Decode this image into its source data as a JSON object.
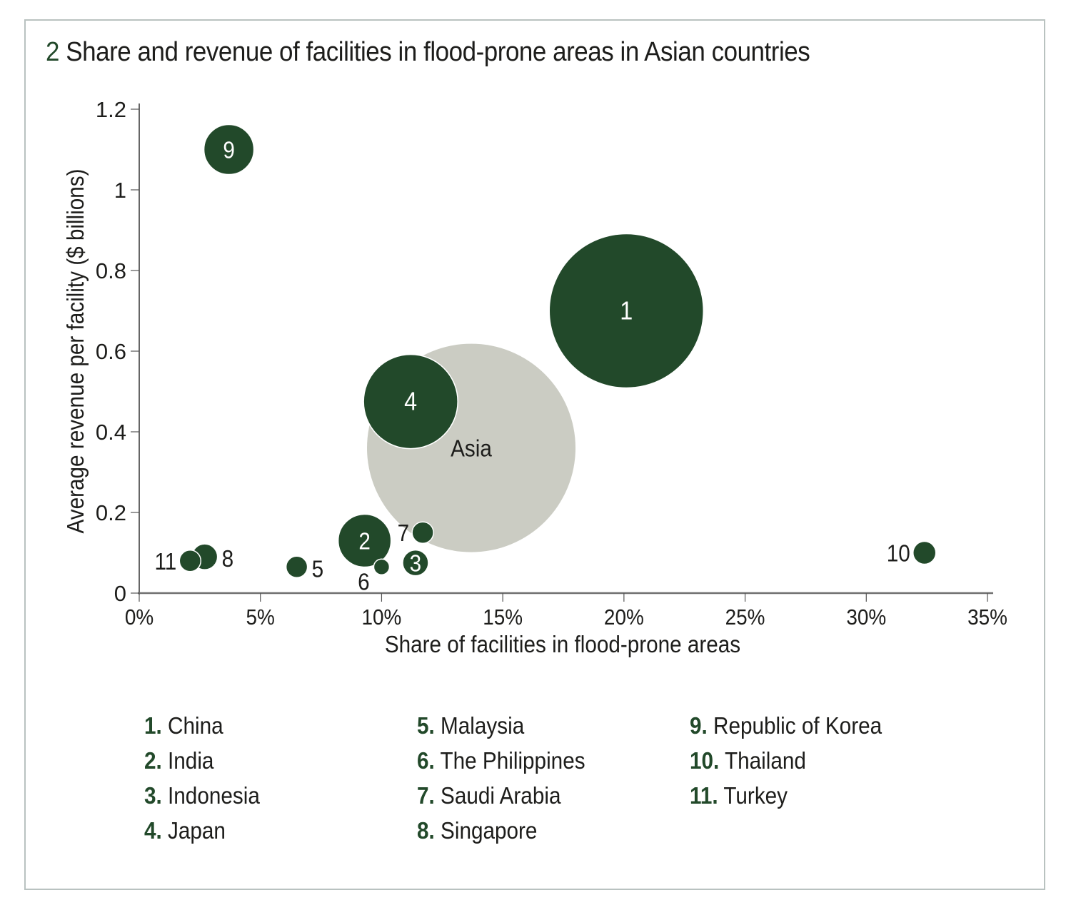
{
  "figure": {
    "number": "2",
    "title": "Share and revenue of facilities in flood-prone areas in Asian countries"
  },
  "colors": {
    "country_bubble": "#22492a",
    "asia_bubble": "#cbccc3",
    "axis": "#6f6f6f",
    "frame": "#b9c2c0"
  },
  "chart_data": {
    "type": "scatter",
    "subtype": "bubble",
    "title": "Share and revenue of facilities in flood-prone areas in Asian countries",
    "xlabel": "Share of facilities in flood-prone areas",
    "ylabel": "Average revenue per facility ($ billions)",
    "xlim": [
      0,
      35
    ],
    "ylim": [
      0,
      1.2
    ],
    "x_ticks": [
      "0%",
      "5%",
      "10%",
      "15%",
      "20%",
      "25%",
      "30%",
      "35%"
    ],
    "x_tick_values": [
      0,
      5,
      10,
      15,
      20,
      25,
      30,
      35
    ],
    "y_ticks": [
      "0",
      "0.2",
      "0.4",
      "0.6",
      "0.8",
      "1",
      "1.2"
    ],
    "y_tick_values": [
      0,
      0.2,
      0.4,
      0.6,
      0.8,
      1.0,
      1.2
    ],
    "grid": false,
    "size_note": "relative bubble size (arbitrary units, estimated)",
    "points": [
      {
        "id": "asia",
        "label": "Asia",
        "name": "Asia",
        "x": 13.7,
        "y": 0.36,
        "size": 146,
        "label_pos": "inside-offset",
        "kind": "aggregate"
      },
      {
        "id": "1",
        "label": "1",
        "name": "China",
        "x": 20.1,
        "y": 0.7,
        "size": 108,
        "label_pos": "center"
      },
      {
        "id": "4",
        "label": "4",
        "name": "Japan",
        "x": 11.2,
        "y": 0.475,
        "size": 66,
        "label_pos": "center"
      },
      {
        "id": "9",
        "label": "9",
        "name": "Republic of Korea",
        "x": 3.7,
        "y": 1.1,
        "size": 35,
        "label_pos": "center"
      },
      {
        "id": "2",
        "label": "2",
        "name": "India",
        "x": 9.3,
        "y": 0.13,
        "size": 37,
        "label_pos": "center"
      },
      {
        "id": "7",
        "label": "7",
        "name": "Saudi Arabia",
        "x": 11.7,
        "y": 0.15,
        "size": 15,
        "label_pos": "left"
      },
      {
        "id": "3",
        "label": "3",
        "name": "Indonesia",
        "x": 11.4,
        "y": 0.075,
        "size": 18,
        "label_pos": "center"
      },
      {
        "id": "6",
        "label": "6",
        "name": "The Philippines",
        "x": 10.0,
        "y": 0.065,
        "size": 11,
        "label_pos": "below-left"
      },
      {
        "id": "5",
        "label": "5",
        "name": "Malaysia",
        "x": 6.5,
        "y": 0.065,
        "size": 15,
        "label_pos": "right"
      },
      {
        "id": "8",
        "label": "8",
        "name": "Singapore",
        "x": 2.7,
        "y": 0.09,
        "size": 18,
        "label_pos": "right"
      },
      {
        "id": "11",
        "label": "11",
        "name": "Turkey",
        "x": 2.1,
        "y": 0.08,
        "size": 15,
        "label_pos": "left"
      },
      {
        "id": "10",
        "label": "10",
        "name": "Thailand",
        "x": 32.4,
        "y": 0.1,
        "size": 16,
        "label_pos": "left"
      }
    ]
  },
  "legend": {
    "columns": [
      [
        {
          "num": "1.",
          "name": "China"
        },
        {
          "num": "2.",
          "name": "India"
        },
        {
          "num": "3.",
          "name": "Indonesia"
        },
        {
          "num": "4.",
          "name": "Japan"
        }
      ],
      [
        {
          "num": "5.",
          "name": "Malaysia"
        },
        {
          "num": "6.",
          "name": "The Philippines"
        },
        {
          "num": "7.",
          "name": "Saudi Arabia"
        },
        {
          "num": "8.",
          "name": "Singapore"
        }
      ],
      [
        {
          "num": "9.",
          "name": "Republic of Korea"
        },
        {
          "num": "10.",
          "name": "Thailand"
        },
        {
          "num": "11.",
          "name": "Turkey"
        }
      ]
    ]
  }
}
